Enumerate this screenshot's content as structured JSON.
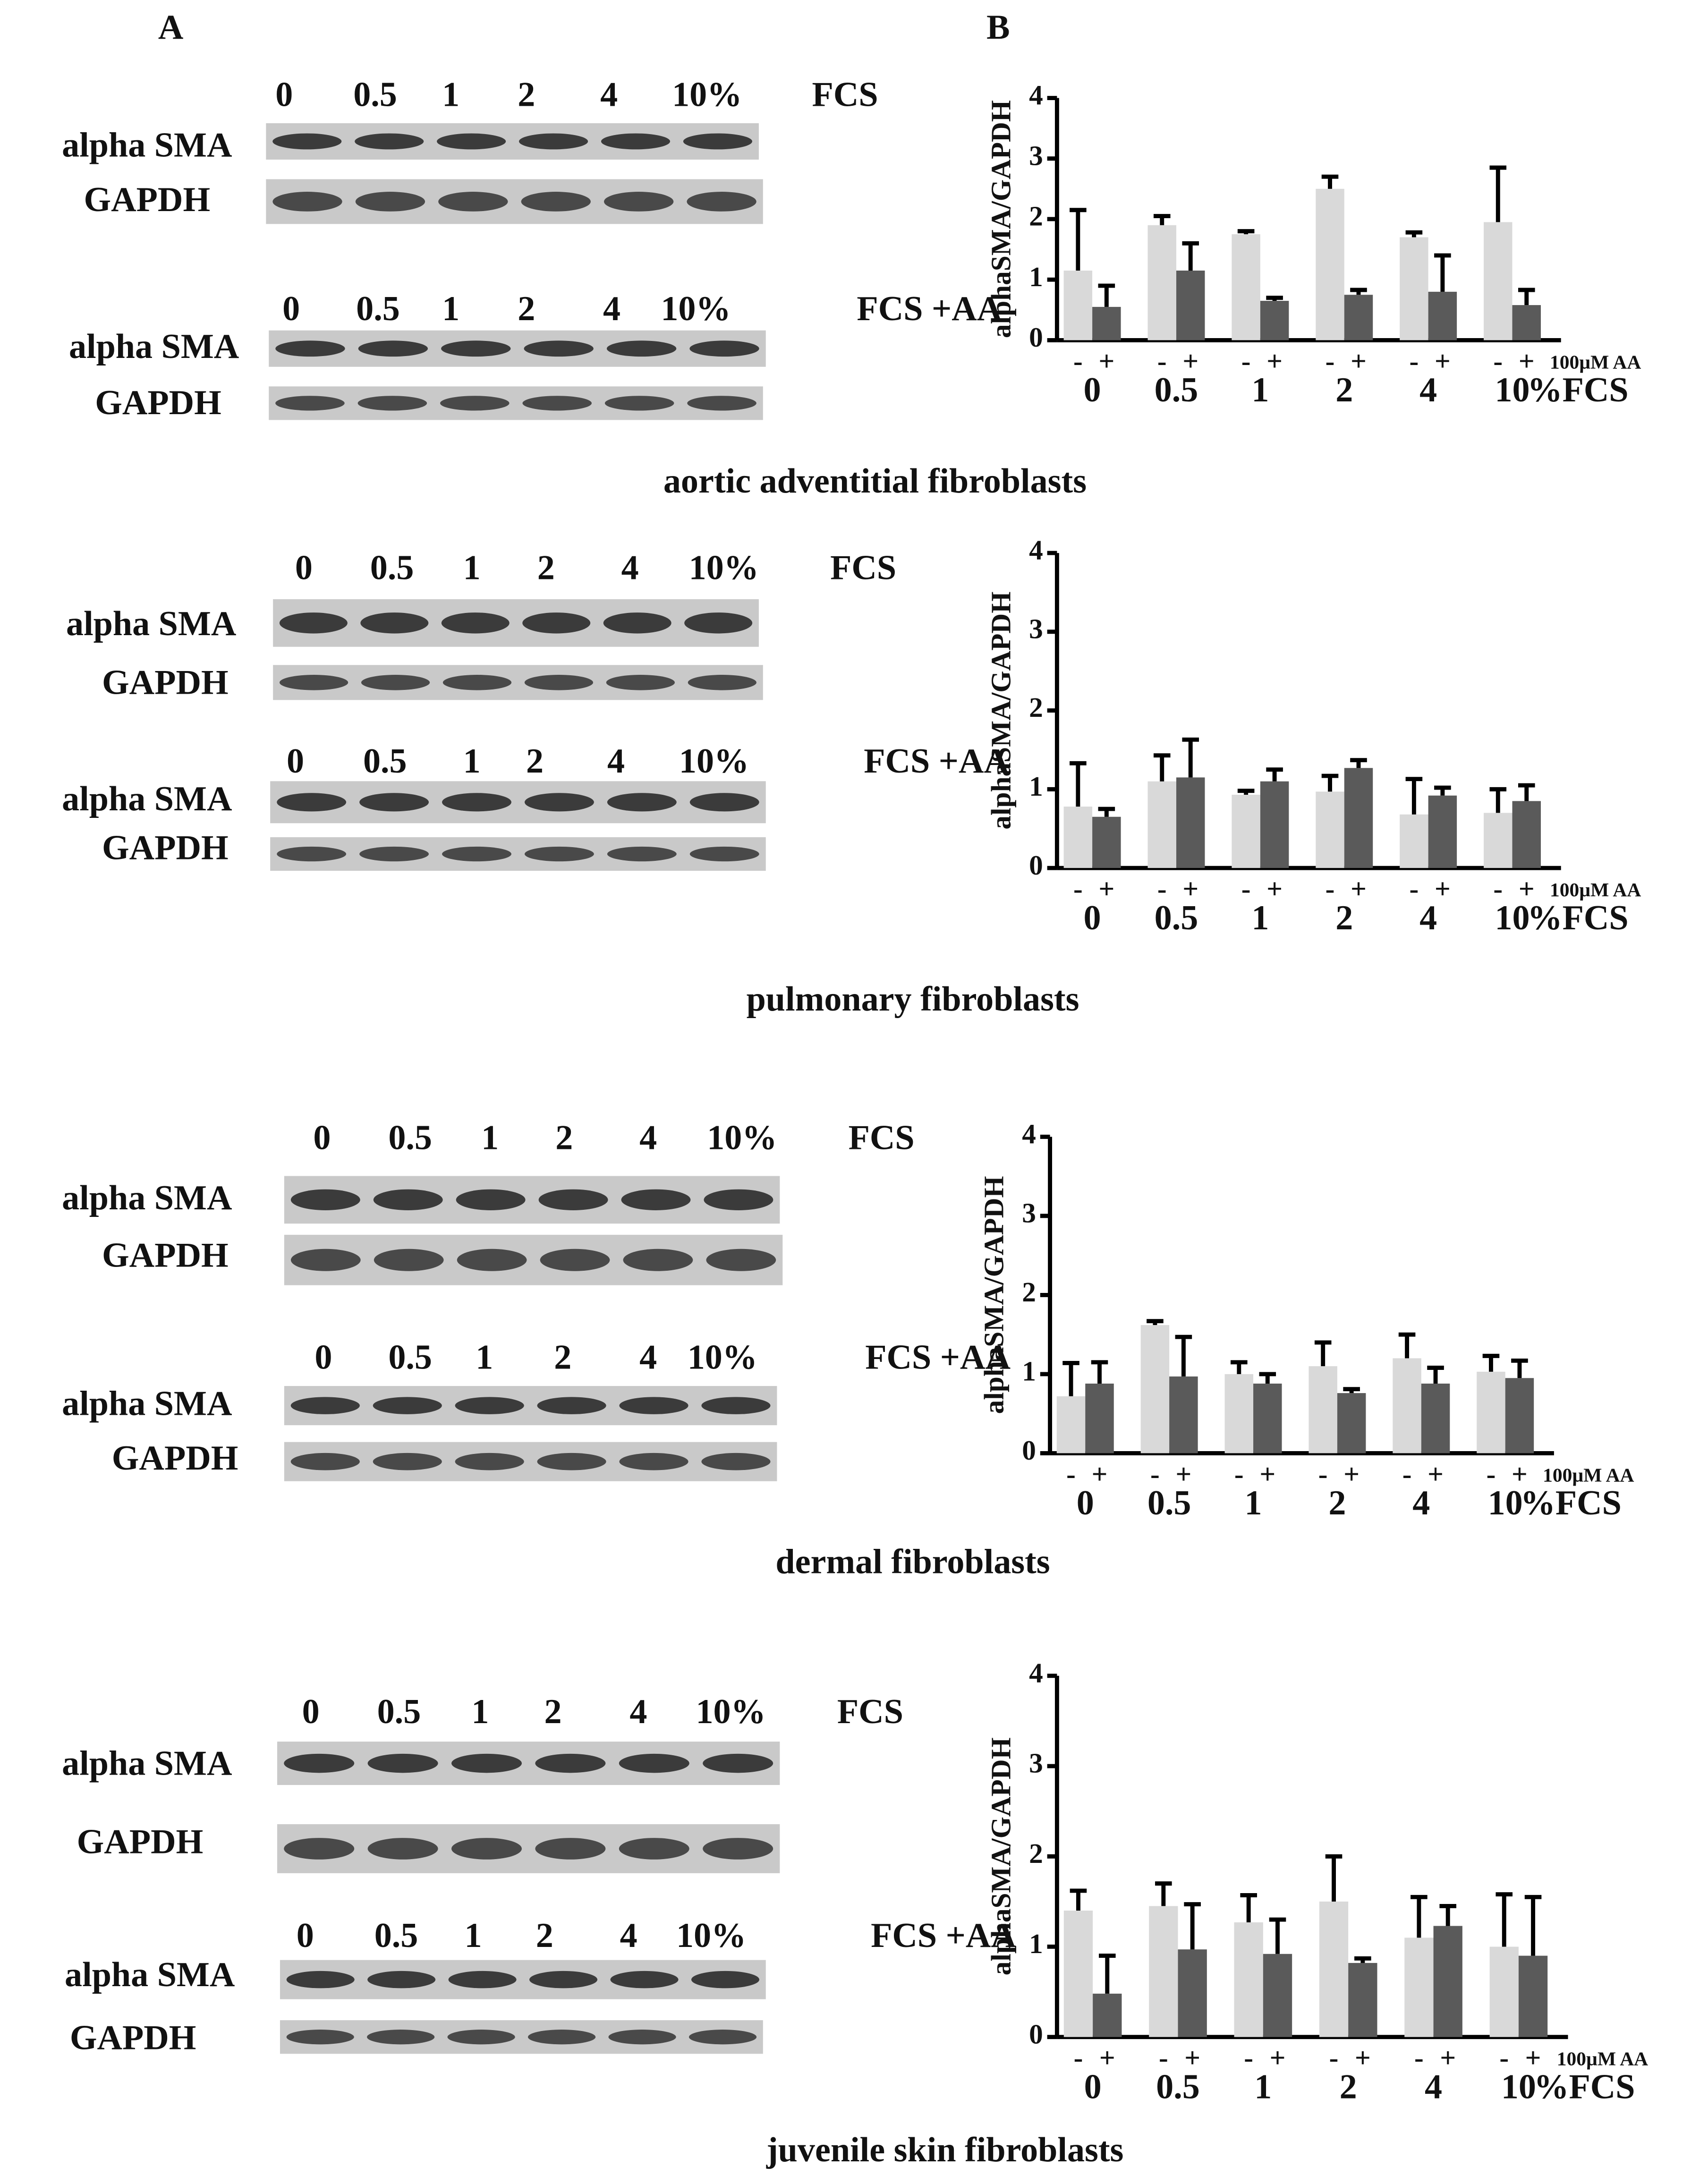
{
  "panel_labels": [
    "A",
    "B"
  ],
  "sections": [
    {
      "caption": "aortic adventitial fibroblasts",
      "blots": [
        {
          "lanes": [
            "0",
            "0.5",
            "1",
            "2",
            "4",
            "10%"
          ],
          "condition": "FCS",
          "rows": [
            "alpha SMA",
            "GAPDH"
          ]
        },
        {
          "lanes": [
            "0",
            "0.5",
            "1",
            "2",
            "4",
            "10%"
          ],
          "condition": "FCS +AA",
          "rows": [
            "alpha SMA",
            "GAPDH"
          ]
        }
      ]
    },
    {
      "caption": "pulmonary  fibroblasts",
      "blots": [
        {
          "lanes": [
            "0",
            "0.5",
            "1",
            "2",
            "4",
            "10%"
          ],
          "condition": "FCS",
          "rows": [
            "alpha SMA",
            "GAPDH"
          ]
        },
        {
          "lanes": [
            "0",
            "0.5",
            "1",
            "2",
            "4",
            "10%"
          ],
          "condition": "FCS +AA",
          "rows": [
            "alpha SMA",
            "GAPDH"
          ]
        }
      ]
    },
    {
      "caption": "dermal fibroblasts",
      "blots": [
        {
          "lanes": [
            "0",
            "0.5",
            "1",
            "2",
            "4",
            "10%"
          ],
          "condition": "FCS",
          "rows": [
            "alpha SMA",
            "GAPDH"
          ]
        },
        {
          "lanes": [
            "0",
            "0.5",
            "1",
            "2",
            "4",
            "10%"
          ],
          "condition": "FCS +AA",
          "rows": [
            "alpha SMA",
            "GAPDH"
          ]
        }
      ]
    },
    {
      "caption": "juvenile skin fibroblasts",
      "blots": [
        {
          "lanes": [
            "0",
            "0.5",
            "1",
            "2",
            "4",
            "10%"
          ],
          "condition": "FCS",
          "rows": [
            "alpha SMA",
            "GAPDH"
          ]
        },
        {
          "lanes": [
            "0",
            "0.5",
            "1",
            "2",
            "4",
            "10%"
          ],
          "condition": "FCS +AA",
          "rows": [
            "alpha SMA",
            "GAPDH"
          ]
        }
      ]
    }
  ],
  "chart_data": [
    {
      "type": "bar",
      "ylabel": "alphaSMA/GAPDH",
      "xlabel": "%FCS",
      "series_caption": "100µM AA",
      "categories": [
        "0",
        "0.5",
        "1",
        "2",
        "4",
        "10"
      ],
      "ylim": [
        0,
        4
      ],
      "yticks": [
        0,
        1,
        2,
        3,
        4
      ],
      "series": [
        {
          "name": "-",
          "color": "#d9d9d9",
          "values": [
            1.15,
            1.9,
            1.75,
            2.5,
            1.7,
            1.95
          ],
          "errors": [
            1.0,
            0.15,
            0.05,
            0.2,
            0.08,
            0.9
          ]
        },
        {
          "name": "+",
          "color": "#5a5a5a",
          "values": [
            0.55,
            1.15,
            0.65,
            0.75,
            0.8,
            0.58
          ],
          "errors": [
            0.35,
            0.45,
            0.05,
            0.08,
            0.6,
            0.25
          ]
        }
      ]
    },
    {
      "type": "bar",
      "ylabel": "alphaSMA/GAPDH",
      "xlabel": "%FCS",
      "series_caption": "100µM AA",
      "categories": [
        "0",
        "0.5",
        "1",
        "2",
        "4",
        "10"
      ],
      "ylim": [
        0,
        4
      ],
      "yticks": [
        0,
        1,
        2,
        3,
        4
      ],
      "series": [
        {
          "name": "-",
          "color": "#d9d9d9",
          "values": [
            0.78,
            1.1,
            0.93,
            0.97,
            0.68,
            0.7
          ],
          "errors": [
            0.55,
            0.33,
            0.05,
            0.2,
            0.45,
            0.3
          ]
        },
        {
          "name": "+",
          "color": "#5a5a5a",
          "values": [
            0.65,
            1.15,
            1.1,
            1.27,
            0.92,
            0.85
          ],
          "errors": [
            0.1,
            0.48,
            0.15,
            0.1,
            0.1,
            0.2
          ]
        }
      ]
    },
    {
      "type": "bar",
      "ylabel": "alphaSMA/GAPDH",
      "xlabel": "%FCS",
      "series_caption": "100µM AA",
      "categories": [
        "0",
        "0.5",
        "1",
        "2",
        "4",
        "10"
      ],
      "ylim": [
        0,
        4
      ],
      "yticks": [
        0,
        1,
        2,
        3,
        4
      ],
      "series": [
        {
          "name": "-",
          "color": "#d9d9d9",
          "values": [
            0.72,
            1.62,
            1.0,
            1.1,
            1.2,
            1.03
          ],
          "errors": [
            0.42,
            0.05,
            0.15,
            0.3,
            0.3,
            0.2
          ]
        },
        {
          "name": "+",
          "color": "#5a5a5a",
          "values": [
            0.88,
            0.97,
            0.88,
            0.76,
            0.88,
            0.95
          ],
          "errors": [
            0.27,
            0.5,
            0.12,
            0.05,
            0.2,
            0.22
          ]
        }
      ]
    },
    {
      "type": "bar",
      "ylabel": "alphaSMA/GAPDH",
      "xlabel": "%FCS",
      "series_caption": "100µM AA",
      "categories": [
        "0",
        "0.5",
        "1",
        "2",
        "4",
        "10"
      ],
      "ylim": [
        0,
        4
      ],
      "yticks": [
        0,
        1,
        2,
        3,
        4
      ],
      "series": [
        {
          "name": "-",
          "color": "#d9d9d9",
          "values": [
            1.4,
            1.45,
            1.27,
            1.5,
            1.1,
            1.0
          ],
          "errors": [
            0.22,
            0.25,
            0.3,
            0.5,
            0.45,
            0.58
          ]
        },
        {
          "name": "+",
          "color": "#5a5a5a",
          "values": [
            0.48,
            0.97,
            0.92,
            0.82,
            1.23,
            0.9
          ],
          "errors": [
            0.42,
            0.5,
            0.38,
            0.05,
            0.22,
            0.65
          ]
        }
      ]
    }
  ]
}
